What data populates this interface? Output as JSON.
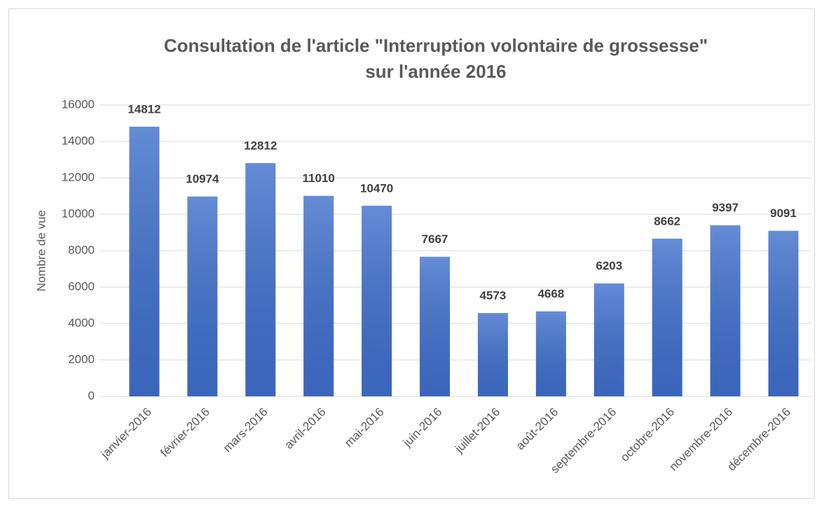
{
  "chart_data": {
    "type": "bar",
    "title": [
      "Consultation de l'article \"Interruption volontaire de grossesse\"",
      "sur l'année 2016"
    ],
    "y_label": "Nombre de vue",
    "categories": [
      "janvier-2016",
      "février-2016",
      "mars-2016",
      "avril-2016",
      "mai-2016",
      "juin-2016",
      "juillet-2016",
      "août-2016",
      "septembre-2016",
      "octobre-2016",
      "novembre-2016",
      "décembre-2016"
    ],
    "values": [
      14812,
      10974,
      12812,
      11010,
      10470,
      7667,
      4573,
      4668,
      6203,
      8662,
      9397,
      9091
    ],
    "color": "#3f6fcc",
    "ylim": [
      0,
      16000
    ],
    "yticks": [
      0,
      2000,
      4000,
      6000,
      8000,
      10000,
      12000,
      14000,
      16000
    ],
    "grid": true
  }
}
